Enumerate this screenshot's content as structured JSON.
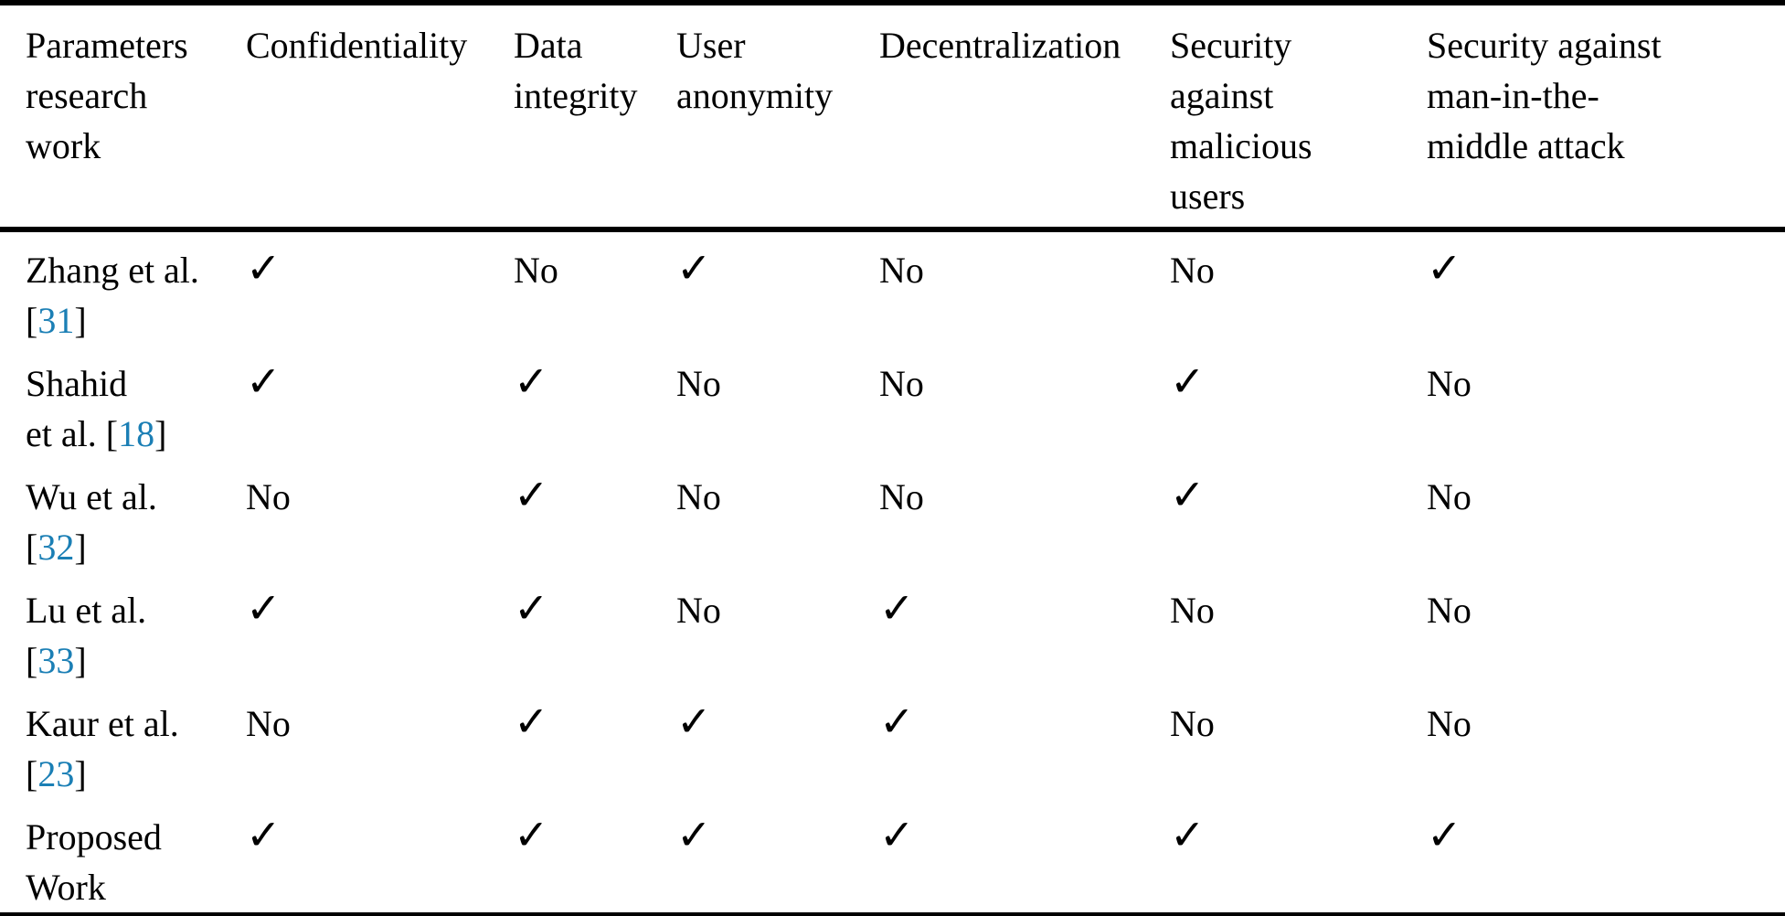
{
  "colors": {
    "text": "#000000",
    "background": "#ffffff",
    "rule": "#000000",
    "link_blue": "#1b7fb5"
  },
  "glyphs": {
    "check": "✓"
  },
  "table": {
    "columns": [
      {
        "label": "Parameters research work",
        "lines": [
          "Parameters",
          "research",
          "work"
        ]
      },
      {
        "label": "Confidentiality",
        "lines": [
          "Confidentiality"
        ]
      },
      {
        "label": "Data integrity",
        "lines": [
          "Data",
          "integrity"
        ]
      },
      {
        "label": "User anonymity",
        "lines": [
          "User",
          "anonymity"
        ]
      },
      {
        "label": "Decentralization",
        "lines": [
          "Decentralization"
        ]
      },
      {
        "label": "Security against malicious users",
        "lines": [
          "Security",
          "against",
          "malicious",
          "users"
        ]
      },
      {
        "label": "Security against man-in-the-middle attack",
        "lines": [
          "Security against",
          "man-in-the-",
          "middle attack"
        ]
      }
    ],
    "rows": [
      {
        "name_lines": [
          [
            {
              "t": "Zhang et al.",
              "link": false
            }
          ],
          [
            {
              "t": "[",
              "link": false
            },
            {
              "t": "31",
              "link": true
            },
            {
              "t": "]",
              "link": false
            }
          ]
        ],
        "values": [
          "✓",
          "No",
          "✓",
          "No",
          "No",
          "✓"
        ]
      },
      {
        "name_lines": [
          [
            {
              "t": "Shahid",
              "link": false
            }
          ],
          [
            {
              "t": "et al. [",
              "link": false
            },
            {
              "t": "18",
              "link": true
            },
            {
              "t": "]",
              "link": false
            }
          ]
        ],
        "values": [
          "✓",
          "✓",
          "No",
          "No",
          "✓",
          "No"
        ]
      },
      {
        "name_lines": [
          [
            {
              "t": "Wu et al.",
              "link": false
            }
          ],
          [
            {
              "t": "[",
              "link": false
            },
            {
              "t": "32",
              "link": true
            },
            {
              "t": "]",
              "link": false
            }
          ]
        ],
        "values": [
          "No",
          "✓",
          "No",
          "No",
          "✓",
          "No"
        ]
      },
      {
        "name_lines": [
          [
            {
              "t": "Lu et al.",
              "link": false
            }
          ],
          [
            {
              "t": "[",
              "link": false
            },
            {
              "t": "33",
              "link": true
            },
            {
              "t": "]",
              "link": false
            }
          ]
        ],
        "values": [
          "✓",
          "✓",
          "No",
          "✓",
          "No",
          "No"
        ]
      },
      {
        "name_lines": [
          [
            {
              "t": "Kaur et al.",
              "link": false
            }
          ],
          [
            {
              "t": "[",
              "link": false
            },
            {
              "t": "23",
              "link": true
            },
            {
              "t": "]",
              "link": false
            }
          ]
        ],
        "values": [
          "No",
          "✓",
          "✓",
          "✓",
          "No",
          "No"
        ]
      },
      {
        "name_lines": [
          [
            {
              "t": "Proposed",
              "link": false
            }
          ],
          [
            {
              "t": "Work",
              "link": false
            }
          ]
        ],
        "values": [
          "✓",
          "✓",
          "✓",
          "✓",
          "✓",
          "✓"
        ]
      }
    ]
  }
}
